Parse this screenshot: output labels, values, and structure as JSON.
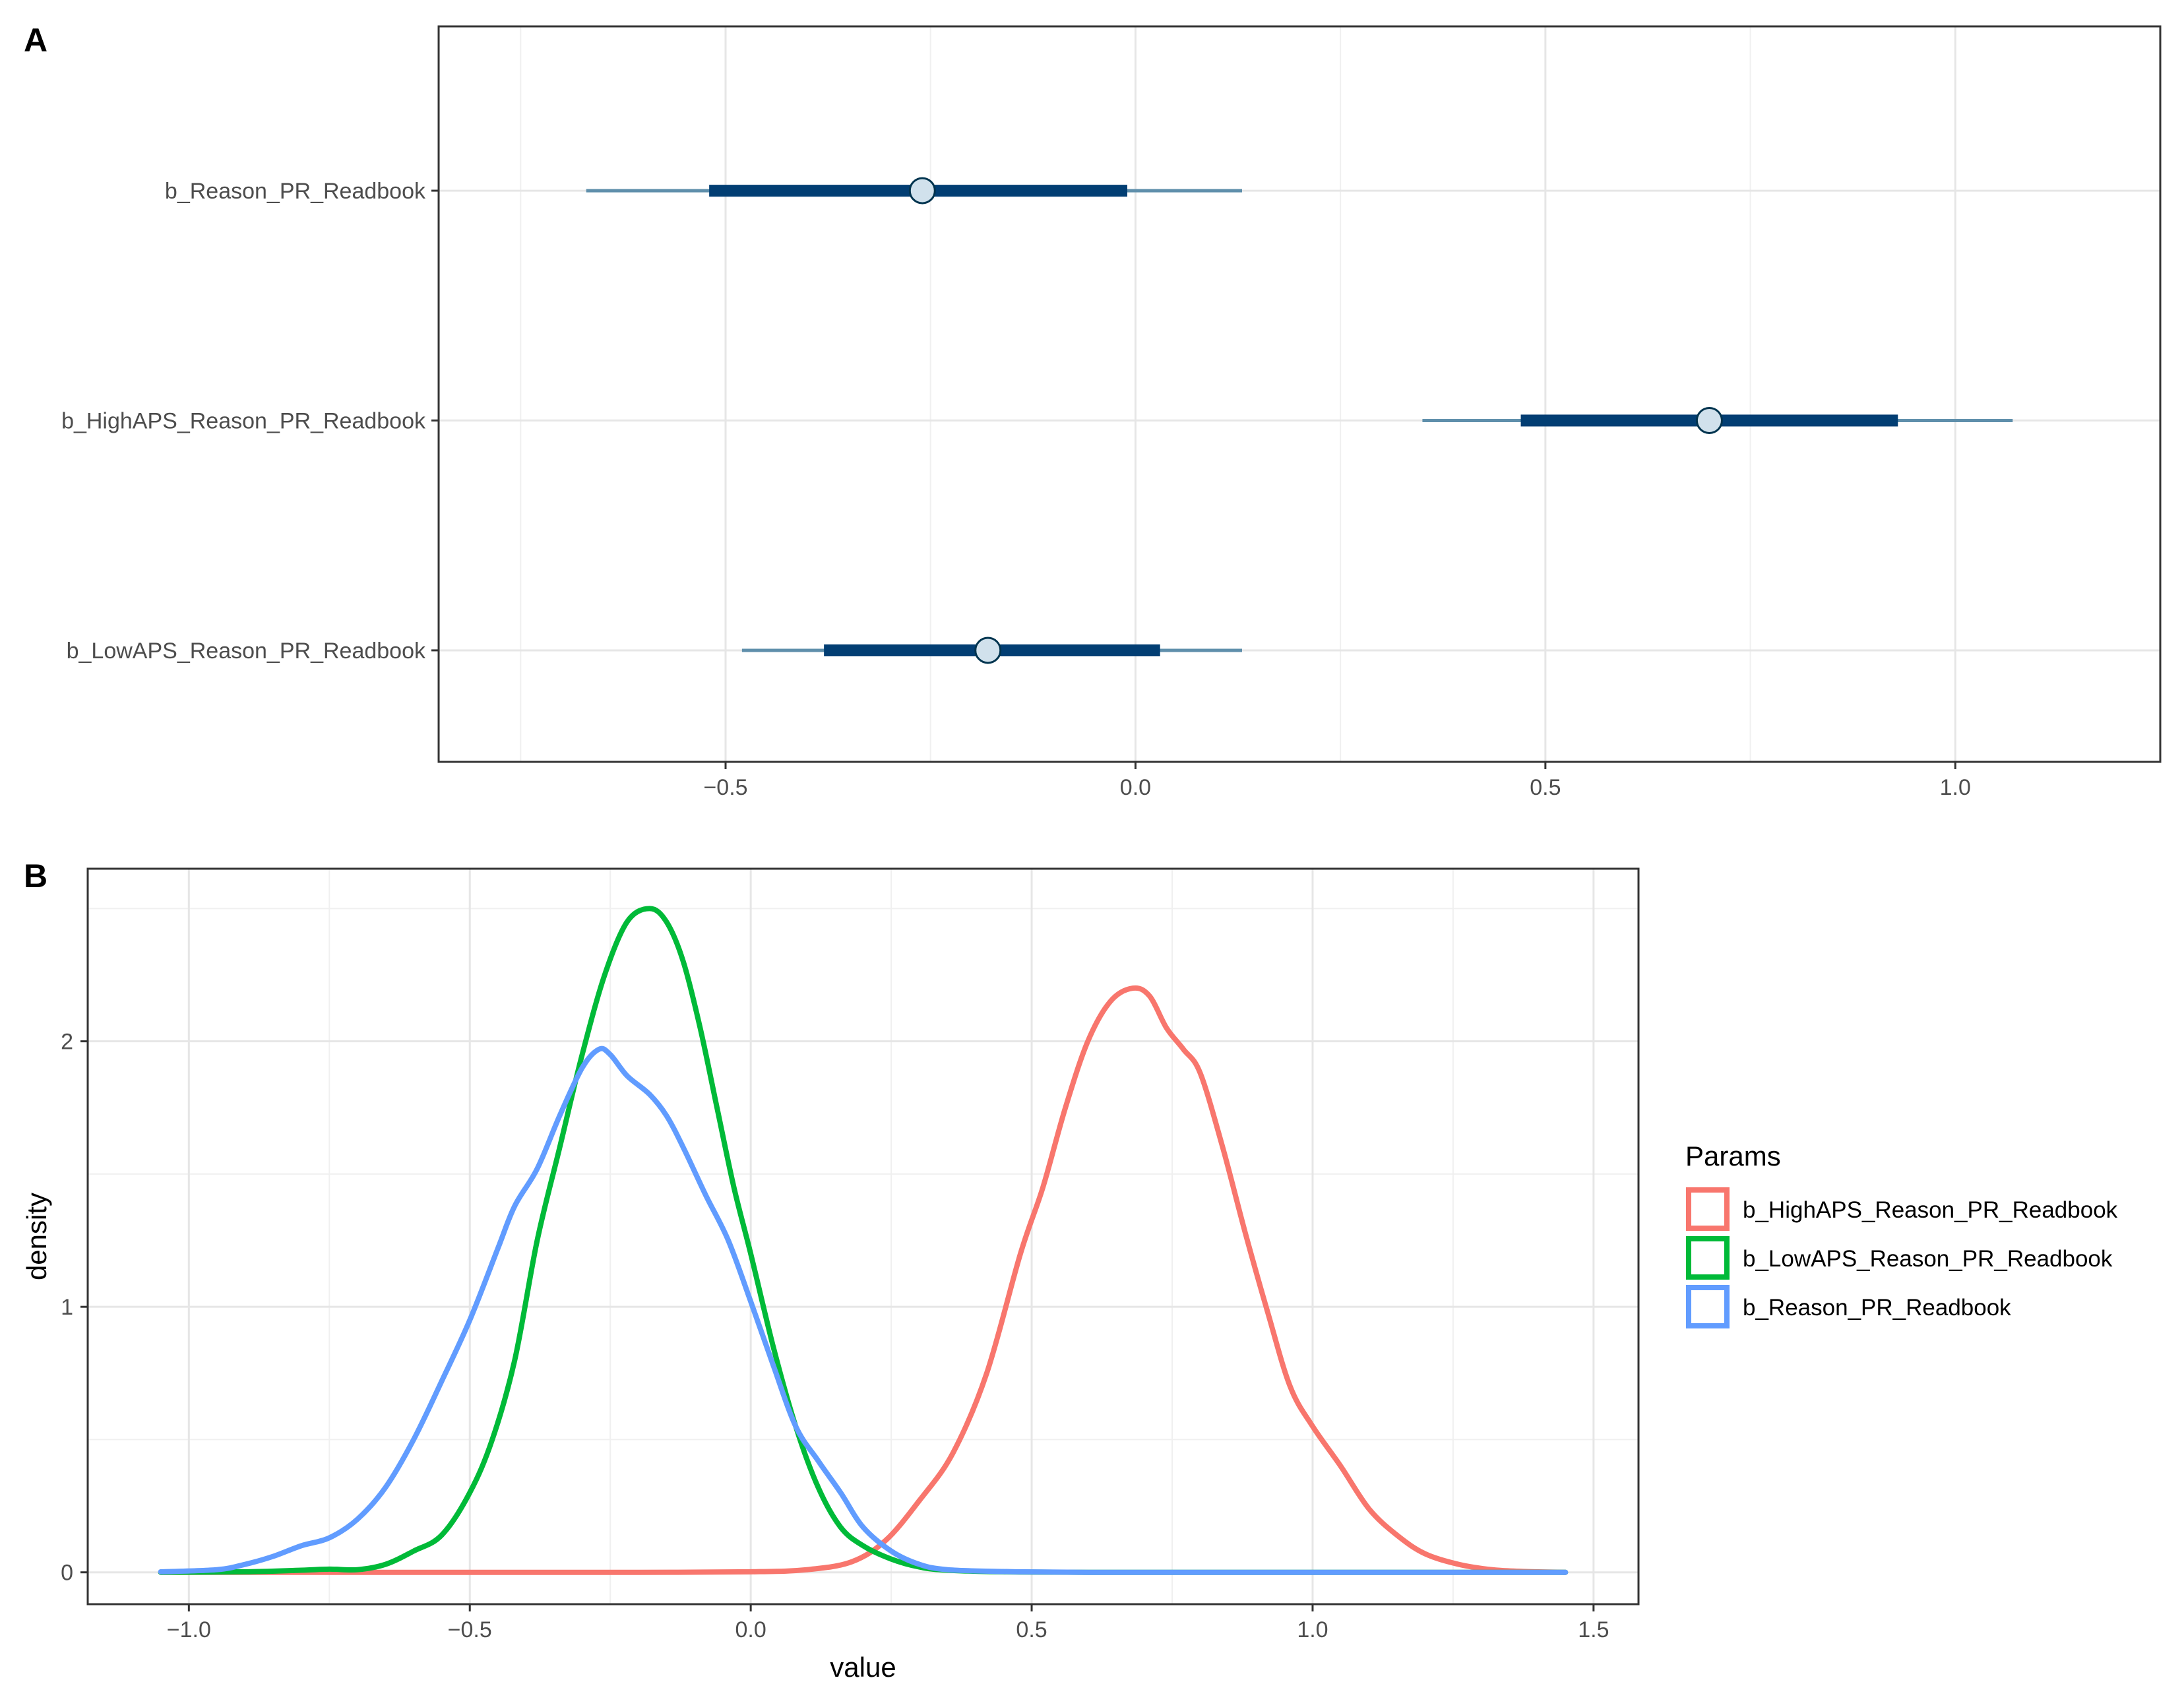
{
  "chart_data": [
    {
      "panel": "A",
      "type": "interval",
      "xlim": [
        -0.85,
        1.25
      ],
      "x_ticks": [
        -0.5,
        0.0,
        0.5,
        1.0
      ],
      "x_tick_labels": [
        "−0.5",
        "0.0",
        "0.5",
        "1.0"
      ],
      "grid": true,
      "colors": {
        "outer": "#5f8fab",
        "inner": "#023e73",
        "point_fill": "#d1e1ec",
        "point_stroke": "#00344f"
      },
      "parameters": [
        {
          "label": "b_Reason_PR_Readbook",
          "estimate": -0.26,
          "inner": [
            -0.52,
            -0.01
          ],
          "outer": [
            -0.67,
            0.13
          ]
        },
        {
          "label": "b_HighAPS_Reason_PR_Readbook",
          "estimate": 0.7,
          "inner": [
            0.47,
            0.93
          ],
          "outer": [
            0.35,
            1.07
          ]
        },
        {
          "label": "b_LowAPS_Reason_PR_Readbook",
          "estimate": -0.18,
          "inner": [
            -0.38,
            0.03
          ],
          "outer": [
            -0.48,
            0.13
          ]
        }
      ]
    },
    {
      "panel": "B",
      "type": "line",
      "xlabel": "value",
      "ylabel": "density",
      "xlim": [
        -1.18,
        1.58
      ],
      "ylim": [
        -0.12,
        2.65
      ],
      "x_ticks": [
        -1.0,
        -0.5,
        0.0,
        0.5,
        1.0,
        1.5
      ],
      "x_tick_labels": [
        "−1.0",
        "−0.5",
        "0.0",
        "0.5",
        "1.0",
        "1.5"
      ],
      "y_ticks": [
        0,
        1,
        2
      ],
      "y_tick_labels": [
        "0",
        "1",
        "2"
      ],
      "grid": true,
      "legend": {
        "title": "Params",
        "position": "right"
      },
      "series": [
        {
          "name": "b_HighAPS_Reason_PR_Readbook",
          "color": "#f8766d",
          "x": [
            -1.05,
            -0.8,
            -0.6,
            -0.4,
            -0.2,
            0.0,
            0.1,
            0.18,
            0.24,
            0.3,
            0.36,
            0.42,
            0.48,
            0.52,
            0.56,
            0.6,
            0.64,
            0.68,
            0.71,
            0.74,
            0.77,
            0.8,
            0.84,
            0.88,
            0.92,
            0.96,
            1.0,
            1.05,
            1.1,
            1.15,
            1.2,
            1.26,
            1.32,
            1.38,
            1.45
          ],
          "y": [
            0,
            0,
            0,
            0,
            0,
            0.002,
            0.01,
            0.04,
            0.12,
            0.27,
            0.45,
            0.75,
            1.2,
            1.45,
            1.75,
            2.0,
            2.15,
            2.2,
            2.17,
            2.05,
            1.97,
            1.88,
            1.6,
            1.28,
            0.98,
            0.7,
            0.55,
            0.4,
            0.24,
            0.14,
            0.07,
            0.03,
            0.01,
            0.003,
            0
          ]
        },
        {
          "name": "b_LowAPS_Reason_PR_Readbook",
          "color": "#00ba38",
          "x": [
            -1.05,
            -0.9,
            -0.8,
            -0.75,
            -0.7,
            -0.65,
            -0.6,
            -0.55,
            -0.5,
            -0.46,
            -0.42,
            -0.38,
            -0.34,
            -0.3,
            -0.26,
            -0.22,
            -0.18,
            -0.15,
            -0.12,
            -0.09,
            -0.06,
            -0.03,
            0.0,
            0.04,
            0.08,
            0.12,
            0.16,
            0.2,
            0.25,
            0.3,
            0.35,
            0.45,
            0.6,
            1.0,
            1.45
          ],
          "y": [
            0,
            0.002,
            0.008,
            0.012,
            0.01,
            0.03,
            0.08,
            0.14,
            0.3,
            0.5,
            0.8,
            1.25,
            1.6,
            1.95,
            2.25,
            2.45,
            2.5,
            2.45,
            2.3,
            2.05,
            1.75,
            1.45,
            1.2,
            0.85,
            0.55,
            0.32,
            0.17,
            0.1,
            0.05,
            0.02,
            0.008,
            0.002,
            0,
            0,
            0
          ]
        },
        {
          "name": "b_Reason_PR_Readbook",
          "color": "#619cff",
          "x": [
            -1.05,
            -0.95,
            -0.9,
            -0.85,
            -0.8,
            -0.75,
            -0.7,
            -0.65,
            -0.6,
            -0.55,
            -0.5,
            -0.45,
            -0.42,
            -0.38,
            -0.34,
            -0.3,
            -0.27,
            -0.25,
            -0.22,
            -0.18,
            -0.15,
            -0.12,
            -0.08,
            -0.04,
            0.0,
            0.04,
            0.08,
            0.12,
            0.16,
            0.2,
            0.25,
            0.3,
            0.35,
            0.45,
            0.6,
            0.9,
            1.2,
            1.45
          ],
          "y": [
            0.002,
            0.01,
            0.03,
            0.06,
            0.1,
            0.13,
            0.2,
            0.32,
            0.5,
            0.72,
            0.95,
            1.22,
            1.38,
            1.52,
            1.72,
            1.9,
            1.97,
            1.95,
            1.87,
            1.8,
            1.72,
            1.6,
            1.42,
            1.25,
            1.02,
            0.78,
            0.55,
            0.42,
            0.3,
            0.17,
            0.08,
            0.03,
            0.01,
            0.003,
            0,
            0,
            0,
            0
          ]
        }
      ]
    }
  ]
}
